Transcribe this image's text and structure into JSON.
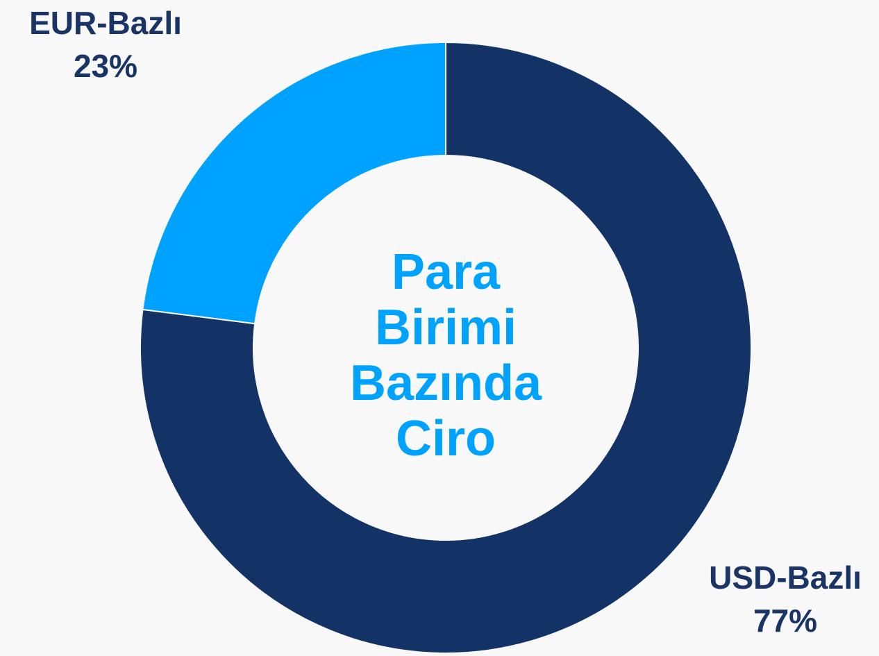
{
  "chart_data": {
    "type": "donut",
    "center_label": "Para Birimi Bazında Ciro",
    "categories": [
      "USD-Bazlı",
      "EUR-Bazlı"
    ],
    "values": [
      77,
      23
    ],
    "value_labels": [
      "77%",
      "23%"
    ],
    "colors": [
      "#133366",
      "#00a2ff"
    ]
  }
}
